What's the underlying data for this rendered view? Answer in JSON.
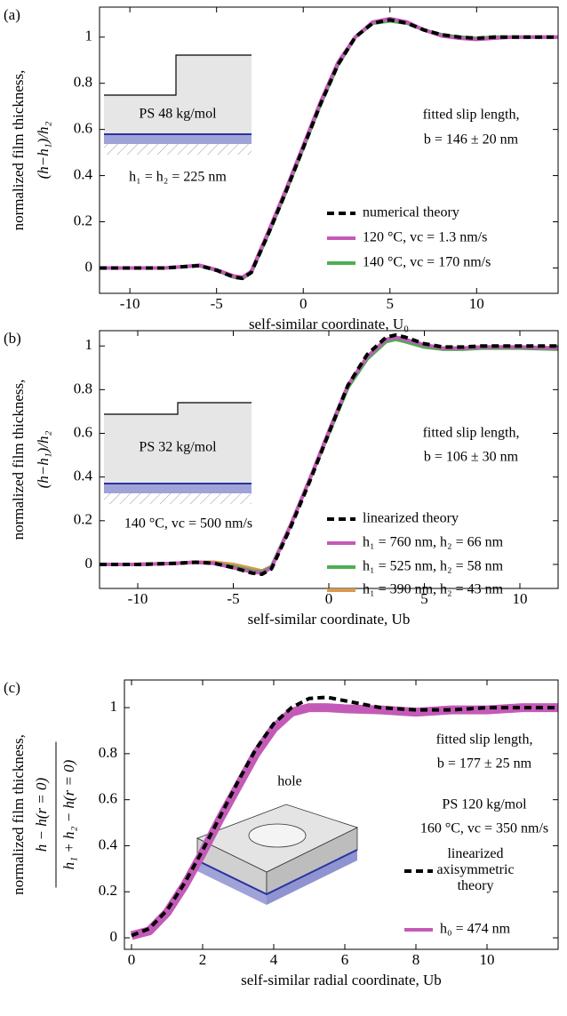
{
  "chart_data": [
    {
      "type": "line",
      "panel_label": "(a)",
      "xlabel": "self-similar coordinate, U₀",
      "ylabel": [
        "normalized film thickness,",
        "(h−h₁)/h₂"
      ],
      "xlim": [
        -11.75,
        14.7
      ],
      "ylim": [
        -0.11,
        1.13
      ],
      "xticks": [
        -10,
        -5,
        0,
        5,
        10
      ],
      "yticks": [
        0,
        0.2,
        0.4,
        0.6,
        0.8,
        1
      ],
      "annotations": [
        "fitted slip length,",
        "b = 146 ± 20 nm",
        "PS 48 kg/mol",
        "h₁ = h₂ = 225 nm"
      ],
      "x": [
        -11.75,
        -10,
        -9,
        -8,
        -7,
        -6,
        -5,
        -4,
        -3.5,
        -3,
        -2,
        -1,
        0,
        1,
        2,
        3,
        4,
        5,
        6,
        7,
        8,
        9,
        10,
        11,
        12,
        13,
        14.7
      ],
      "series": [
        {
          "name": "numerical theory",
          "color": "#000000",
          "dash": true,
          "values": [
            0,
            0,
            0,
            0,
            0.005,
            0.01,
            -0.01,
            -0.04,
            -0.045,
            -0.02,
            0.15,
            0.33,
            0.52,
            0.71,
            0.88,
            1.0,
            1.06,
            1.075,
            1.06,
            1.03,
            1.01,
            1.0,
            0.995,
            1.0,
            1.0,
            1.0,
            1.0
          ]
        },
        {
          "name": "120 °C, vc = 1.3 nm/s",
          "color": "#c45ab8",
          "values": [
            0,
            0,
            0,
            0,
            0.005,
            0.012,
            -0.008,
            -0.035,
            -0.04,
            -0.015,
            0.16,
            0.34,
            0.53,
            0.72,
            0.89,
            1.0,
            1.065,
            1.08,
            1.065,
            1.03,
            1.005,
            0.995,
            0.99,
            0.995,
            1.0,
            1.0,
            1.0
          ]
        },
        {
          "name": "140 °C, vc = 170 nm/s",
          "color": "#4caf50",
          "values": [
            0,
            0,
            0,
            0,
            0.005,
            0.01,
            -0.01,
            -0.04,
            -0.045,
            -0.02,
            0.15,
            0.33,
            0.52,
            0.71,
            0.88,
            1.0,
            1.06,
            1.07,
            1.06,
            1.03,
            1.01,
            1.0,
            0.995,
            1.0,
            1.0,
            1.0,
            1.0
          ]
        }
      ]
    },
    {
      "type": "line",
      "panel_label": "(b)",
      "xlabel": "self-similar coordinate, Ub",
      "ylabel": [
        "normalized film thickness,",
        "(h−h₁)/h₂"
      ],
      "xlim": [
        -12,
        12
      ],
      "ylim": [
        -0.11,
        1.07
      ],
      "xticks": [
        -10,
        -5,
        0,
        5,
        10
      ],
      "yticks": [
        0,
        0.2,
        0.4,
        0.6,
        0.8,
        1
      ],
      "annotations": [
        "fitted slip length,",
        "b = 106 ± 30 nm",
        "PS 32 kg/mol",
        "140 °C, vc = 500 nm/s"
      ],
      "x": [
        -12,
        -10,
        -8,
        -7,
        -6,
        -5,
        -4,
        -3.5,
        -3,
        -2,
        -1,
        0,
        1,
        2,
        3,
        3.5,
        4,
        5,
        6,
        7,
        8,
        10,
        12
      ],
      "series": [
        {
          "name": "linearized theory",
          "color": "#000000",
          "dash": true,
          "values": [
            0,
            0,
            0.005,
            0.01,
            0.005,
            -0.015,
            -0.04,
            -0.045,
            -0.02,
            0.17,
            0.38,
            0.6,
            0.82,
            0.96,
            1.04,
            1.05,
            1.04,
            1.01,
            0.995,
            0.995,
            1.0,
            1.0,
            1.0
          ]
        },
        {
          "name": "h₁ = 760 nm, h₂ = 66 nm",
          "color": "#c45ab8",
          "values": [
            0,
            0,
            0.005,
            0.01,
            0.005,
            -0.015,
            -0.035,
            -0.04,
            -0.015,
            0.18,
            0.39,
            0.61,
            0.82,
            0.95,
            1.03,
            1.04,
            1.03,
            1.005,
            0.99,
            0.99,
            0.995,
            0.995,
            0.99
          ]
        },
        {
          "name": "h₁ = 525 nm, h₂ = 58 nm",
          "color": "#4caf50",
          "values": [
            0,
            0,
            0.005,
            0.01,
            0.005,
            -0.01,
            -0.03,
            -0.035,
            -0.01,
            0.18,
            0.39,
            0.6,
            0.81,
            0.94,
            1.02,
            1.03,
            1.02,
            0.995,
            0.985,
            0.985,
            0.99,
            0.99,
            0.985
          ]
        },
        {
          "name": "h₁ = 390 nm, h₂ = 43 nm",
          "color": "#d99a4e",
          "values": [
            0,
            0,
            0.005,
            0.01,
            0.01,
            0.0,
            -0.02,
            -0.03,
            -0.01,
            0.18,
            0.39,
            0.6,
            0.81,
            0.95,
            1.03,
            1.04,
            1.03,
            1.0,
            0.99,
            0.99,
            0.995,
            0.995,
            0.99
          ]
        }
      ]
    },
    {
      "type": "line",
      "panel_label": "(c)",
      "xlabel": "self-similar radial coordinate, Ub",
      "ylabel": [
        "normalized film thickness,",
        "h − h(r = 0)",
        "h₁ + h₂ − h(r = 0)"
      ],
      "xlim": [
        -0.2,
        12
      ],
      "ylim": [
        -0.05,
        1.12
      ],
      "xticks": [
        0,
        2,
        4,
        6,
        8,
        10
      ],
      "yticks": [
        0,
        0.2,
        0.4,
        0.6,
        0.8,
        1
      ],
      "annotations": [
        "fitted slip length,",
        "b = 177 ± 25 nm",
        "PS 120 kg/mol",
        "160 °C, vc = 350 nm/s",
        "hole"
      ],
      "x": [
        0,
        0.5,
        1,
        1.5,
        2,
        2.5,
        3,
        3.5,
        4,
        4.5,
        5,
        5.5,
        6,
        7,
        8,
        9,
        10,
        11,
        12
      ],
      "series": [
        {
          "name": "linearized axisymmetric theory",
          "color": "#000000",
          "dash": true,
          "values": [
            0.01,
            0.04,
            0.12,
            0.24,
            0.38,
            0.53,
            0.68,
            0.82,
            0.93,
            1.0,
            1.04,
            1.045,
            1.03,
            1.0,
            0.99,
            0.99,
            1.0,
            1.0,
            1.0
          ]
        },
        {
          "name": "h₀ = 474 nm",
          "color": "#c45ab8",
          "wide": true,
          "values": [
            0.01,
            0.03,
            0.11,
            0.23,
            0.37,
            0.52,
            0.66,
            0.8,
            0.91,
            0.98,
            1.0,
            1.0,
            0.995,
            0.99,
            0.98,
            0.99,
            0.99,
            1.0,
            1.0
          ]
        }
      ]
    }
  ]
}
